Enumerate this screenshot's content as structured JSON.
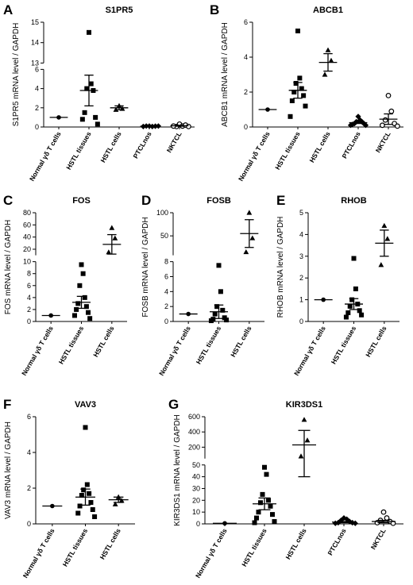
{
  "chart_data": [
    {
      "type": "dot",
      "label": "A",
      "title": "S1PR5",
      "ylabel": "S1PR5  mRNA level / GAPDH",
      "categories": [
        "Normal γδ T cells",
        "HSTL tissues",
        "HSTL cells",
        "PTCLnos",
        "NKTCL"
      ],
      "markers": [
        "circle",
        "square",
        "triangle",
        "diamond",
        "open-circle"
      ],
      "color": "#000000",
      "values": [
        [
          1
        ],
        [
          14.5,
          4.5,
          4.0,
          3.8,
          1.5,
          1.0,
          0.8,
          0.3
        ],
        [
          2.2,
          1.9,
          1.8
        ],
        [
          0.1,
          0.05,
          0.1,
          0.08,
          0.05,
          0.1
        ],
        [
          0.3,
          0.1,
          0.05,
          0.2,
          0.1,
          0.05
        ]
      ],
      "means": [
        1,
        3.8,
        2.0,
        0.08,
        0.13
      ],
      "errors": [
        0,
        1.6,
        0.2,
        0.02,
        0.05
      ],
      "ylim": [
        0,
        15
      ],
      "ybreak": [
        6,
        13
      ],
      "yticks": [
        0,
        2,
        4,
        6,
        13,
        14,
        15
      ]
    },
    {
      "type": "dot",
      "label": "B",
      "title": "ABCB1",
      "ylabel": "ABCB1  mRNA level / GAPDH",
      "categories": [
        "Normal γδ T cells",
        "HSTL tissues",
        "HSTL cells",
        "PTCLnos",
        "NKTCL"
      ],
      "markers": [
        "circle",
        "square",
        "triangle",
        "diamond",
        "open-circle"
      ],
      "color": "#000000",
      "values": [
        [
          1
        ],
        [
          5.5,
          2.8,
          2.5,
          2.2,
          2.0,
          1.8,
          1.5,
          1.2,
          0.6
        ],
        [
          4.4,
          3.8,
          3.0
        ],
        [
          0.6,
          0.4,
          0.3,
          0.3,
          0.2,
          0.2,
          0.15,
          0.1,
          0.1
        ],
        [
          1.8,
          0.9,
          0.4,
          0.2,
          0.1,
          0.05
        ]
      ],
      "means": [
        1,
        2.1,
        3.7,
        0.25,
        0.45
      ],
      "errors": [
        0,
        0.45,
        0.5,
        0.05,
        0.3
      ],
      "ylim": [
        0,
        6
      ],
      "yticks": [
        0,
        2,
        4,
        6
      ]
    },
    {
      "type": "dot",
      "label": "C",
      "title": "FOS",
      "ylabel": "FOS mRNA level / GAPDH",
      "categories": [
        "Normal γδ T cells",
        "HSTL tissues",
        "HSTL cells"
      ],
      "markers": [
        "circle",
        "square",
        "triangle"
      ],
      "color": "#000000",
      "values": [
        [
          1
        ],
        [
          9.5,
          8,
          6,
          4,
          3,
          2.5,
          2,
          1.5,
          1,
          0.5
        ],
        [
          55,
          38,
          15
        ]
      ],
      "means": [
        1,
        3.2,
        28
      ],
      "errors": [
        0,
        1.0,
        16
      ],
      "ylim": [
        0,
        80
      ],
      "ybreak": [
        10,
        10
      ],
      "yticks": [
        0,
        2,
        4,
        6,
        8,
        10,
        20,
        40,
        60,
        80
      ]
    },
    {
      "type": "dot",
      "label": "D",
      "title": "FOSB",
      "ylabel": "FOSB mRNA level / GAPDH",
      "categories": [
        "Normal γδ T cells",
        "HSTL tissues",
        "HSTL cells"
      ],
      "markers": [
        "circle",
        "square",
        "triangle"
      ],
      "color": "#000000",
      "values": [
        [
          1
        ],
        [
          7.5,
          4,
          2,
          1.5,
          1,
          0.5,
          0.3,
          0.2,
          0.1
        ],
        [
          100,
          45,
          15
        ]
      ],
      "means": [
        1,
        1.3,
        55
      ],
      "errors": [
        0,
        0.9,
        30
      ],
      "ylim": [
        0,
        100
      ],
      "ybreak": [
        8,
        8
      ],
      "yticks": [
        0,
        2,
        4,
        6,
        8,
        50,
        100
      ]
    },
    {
      "type": "dot",
      "label": "E",
      "title": "RHOB",
      "ylabel": "RHOB mRNA level / GAPDH",
      "categories": [
        "Normal γδ T cells",
        "HSTL tissues",
        "HSTL cells"
      ],
      "markers": [
        "circle",
        "square",
        "triangle"
      ],
      "color": "#000000",
      "values": [
        [
          1
        ],
        [
          2.9,
          1.5,
          1.0,
          0.8,
          0.7,
          0.5,
          0.4,
          0.3,
          0.2
        ],
        [
          4.4,
          3.8,
          2.6
        ]
      ],
      "means": [
        1,
        0.8,
        3.6
      ],
      "errors": [
        0,
        0.25,
        0.6
      ],
      "ylim": [
        0,
        5
      ],
      "yticks": [
        0,
        1,
        2,
        3,
        4,
        5
      ]
    },
    {
      "type": "dot",
      "label": "F",
      "title": "VAV3",
      "ylabel": "VAV3  mRNA level / GAPDH",
      "categories": [
        "Normal γδ T cells",
        "HSTL tissues",
        "HSTL cells"
      ],
      "markers": [
        "circle",
        "square",
        "triangle"
      ],
      "color": "#000000",
      "values": [
        [
          1
        ],
        [
          5.4,
          2.2,
          1.9,
          1.7,
          1.6,
          1.2,
          1.0,
          0.8,
          0.6,
          0.4
        ],
        [
          1.5,
          1.3,
          1.1
        ]
      ],
      "means": [
        1,
        1.5,
        1.35
      ],
      "errors": [
        0,
        0.45,
        0.15
      ],
      "ylim": [
        0,
        6
      ],
      "yticks": [
        0,
        2,
        4,
        6
      ]
    },
    {
      "type": "dot",
      "label": "G",
      "title": "KIR3DS1",
      "ylabel": "KIR3DS1  mRNA level / GAPDH",
      "categories": [
        "Normal γδ T cells",
        "HSTL tissues",
        "HSTL cells",
        "PTCLnos",
        "NKTCL"
      ],
      "markers": [
        "circle",
        "square",
        "triangle",
        "diamond",
        "open-circle"
      ],
      "color": "#000000",
      "values": [
        [
          0.5
        ],
        [
          48,
          42,
          25,
          20,
          18,
          15,
          10,
          8,
          5,
          2,
          1
        ],
        [
          560,
          290,
          80
        ],
        [
          5,
          4,
          3,
          2,
          1,
          1,
          0.5,
          0.5
        ],
        [
          10,
          5,
          3,
          2,
          1,
          0.5
        ]
      ],
      "means": [
        0.5,
        17,
        230,
        1.5,
        2
      ],
      "errors": [
        0,
        5,
        190,
        0.5,
        1
      ],
      "ylim": [
        0,
        600
      ],
      "ybreak": [
        50,
        50
      ],
      "yticks": [
        0,
        10,
        20,
        30,
        40,
        50,
        200,
        400,
        600
      ]
    }
  ]
}
